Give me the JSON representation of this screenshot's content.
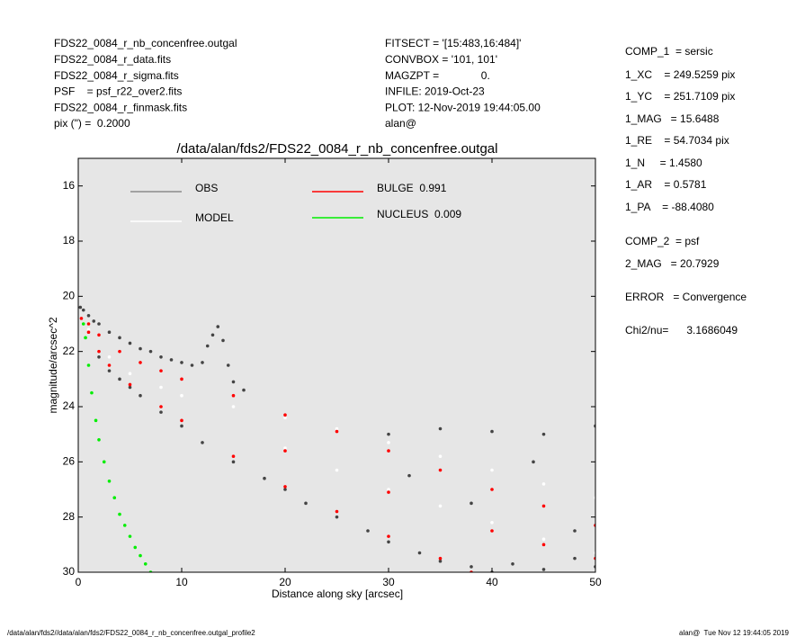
{
  "header": {
    "left": [
      "FDS22_0084_r_nb_concenfree.outgal",
      "FDS22_0084_r_data.fits",
      "FDS22_0084_r_sigma.fits",
      "PSF    = psf_r22_over2.fits",
      "FDS22_0084_r_finmask.fits",
      "pix (\") =  0.2000"
    ],
    "middle": [
      "FITSECT = '[15:483,16:484]'",
      "CONVBOX = '101, 101'",
      "MAGZPT =              0.",
      "INFILE: 2019-Oct-23",
      "PLOT: 12-Nov-2019 19:44:05.00",
      "alan@"
    ],
    "right": [
      "COMP_1  = sersic",
      "1_XC    = 249.5259 pix",
      "1_YC    = 251.7109 pix",
      "1_MAG   = 15.6488",
      "1_RE    = 54.7034 pix",
      "1_N     = 1.4580",
      "1_AR    = 0.5781",
      "1_PA    = -88.4080",
      "COMP_2  = psf",
      "2_MAG   = 20.7929",
      "ERROR   = Convergence",
      "Chi2/nu=      3.1686049"
    ]
  },
  "footer": {
    "left": "/data/alan/fds2//data/alan/fds2/FDS22_0084_r_nb_concenfree.outgal_profile2",
    "right": "alan@  Tue Nov 12 19:44:05 2019"
  },
  "chart_data": {
    "type": "scatter",
    "title": "/data/alan/fds2/FDS22_0084_r_nb_concenfree.outgal",
    "xlabel": "Distance along sky [arcsec]",
    "ylabel": "magnitude/arcsec^2",
    "xlim": [
      0,
      50
    ],
    "xticks": [
      0,
      10,
      20,
      30,
      40,
      50
    ],
    "ylim": [
      15,
      30
    ],
    "y_inverted": true,
    "yticks": [
      16,
      18,
      20,
      22,
      24,
      26,
      28,
      30
    ],
    "background": "#e6e6e6",
    "legend": "upper left",
    "series": [
      {
        "name": "OBS",
        "color": "#444444",
        "legend_color": "#8c8c8c",
        "x": [
          0.2,
          0.5,
          1,
          1.5,
          2,
          3,
          4,
          5,
          6,
          7,
          8,
          9,
          10,
          11,
          12,
          12.5,
          13,
          13.5,
          14,
          14.5,
          15,
          16,
          2,
          3,
          4,
          5,
          6,
          8,
          10,
          12,
          15,
          18,
          20,
          22,
          25,
          28,
          30,
          33,
          35,
          38,
          40,
          42,
          45,
          48,
          50,
          30,
          35,
          40,
          45,
          50,
          32,
          38,
          44,
          48
        ],
        "y": [
          20.4,
          20.5,
          20.7,
          20.9,
          21.0,
          21.3,
          21.5,
          21.7,
          21.9,
          22.0,
          22.2,
          22.3,
          22.4,
          22.5,
          22.4,
          21.8,
          21.4,
          21.1,
          21.6,
          22.5,
          23.1,
          23.4,
          22.2,
          22.7,
          23.0,
          23.3,
          23.6,
          24.2,
          24.7,
          25.3,
          26.0,
          26.6,
          27.0,
          27.5,
          28.0,
          28.5,
          28.9,
          29.3,
          29.6,
          29.8,
          30.0,
          29.7,
          29.9,
          29.5,
          29.8,
          25.0,
          24.8,
          24.9,
          25.0,
          24.7,
          26.5,
          27.5,
          26.0,
          28.5
        ]
      },
      {
        "name": "MODEL",
        "color": "#ffffff",
        "legend_color": "#ffffff",
        "x": [
          1,
          3,
          5,
          8,
          10,
          15,
          20,
          25,
          30,
          35,
          40,
          45,
          50,
          20,
          25,
          30,
          35,
          40,
          45,
          50
        ],
        "y": [
          21.2,
          22.2,
          22.8,
          23.3,
          23.6,
          24.0,
          24.4,
          24.8,
          25.3,
          25.8,
          26.3,
          26.8,
          27.3,
          25.5,
          26.3,
          27.0,
          27.6,
          28.2,
          28.8,
          29.3
        ]
      },
      {
        "name": "BULGE  0.991",
        "color": "#ff0000",
        "legend_color": "#ff0000",
        "x": [
          0.3,
          1,
          2,
          4,
          6,
          8,
          10,
          15,
          20,
          25,
          30,
          35,
          40,
          45,
          50,
          1,
          2,
          3,
          5,
          8,
          10,
          15,
          20,
          25,
          30,
          35,
          38,
          20,
          30,
          40,
          45,
          50
        ],
        "y": [
          20.8,
          21.0,
          21.4,
          22.0,
          22.4,
          22.7,
          23.0,
          23.6,
          24.3,
          24.9,
          25.6,
          26.3,
          27.0,
          27.6,
          28.3,
          21.3,
          22.0,
          22.5,
          23.2,
          24.0,
          24.5,
          25.8,
          26.9,
          27.8,
          28.7,
          29.5,
          30.0,
          25.6,
          27.1,
          28.5,
          29.0,
          29.5
        ]
      },
      {
        "name": "NUCLEUS  0.009",
        "color": "#00ee00",
        "legend_color": "#00ee00",
        "x": [
          0.5,
          0.7,
          1,
          1.3,
          1.7,
          2,
          2.5,
          3,
          3.5,
          4,
          4.5,
          5,
          5.5,
          6,
          6.5,
          7
        ],
        "y": [
          21.0,
          21.5,
          22.5,
          23.5,
          24.5,
          25.2,
          26.0,
          26.7,
          27.3,
          27.9,
          28.3,
          28.7,
          29.1,
          29.4,
          29.7,
          30.0
        ]
      }
    ]
  }
}
